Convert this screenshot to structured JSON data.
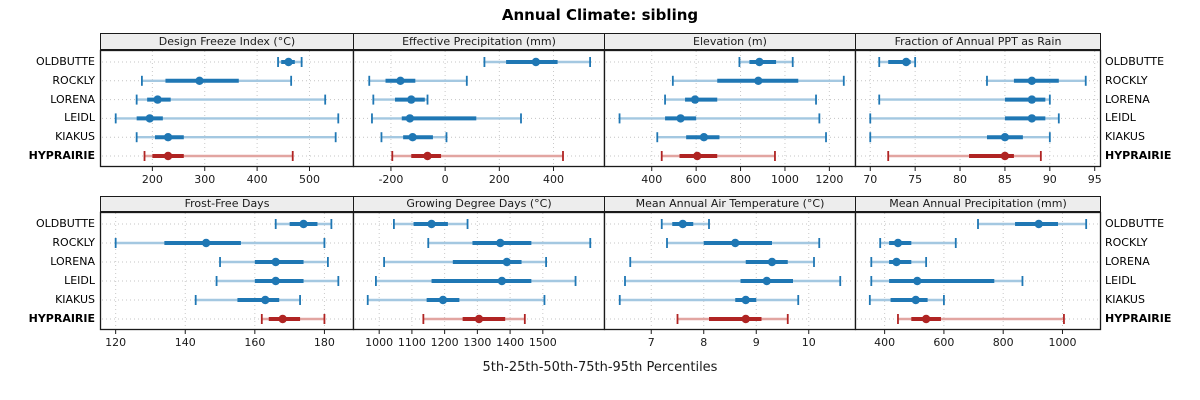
{
  "title": "Annual Climate: sibling",
  "caption": "5th-25th-50th-75th-95th Percentiles",
  "stations": [
    "OLDBUTTE",
    "ROCKLY",
    "LORENA",
    "LEIDL",
    "KIAKUS",
    "HYPRAIRIE"
  ],
  "highlight_station": "HYPRAIRIE",
  "colors": {
    "blue_main": "#1f77b4",
    "blue_light": "#a4c8e1",
    "red_main": "#b02423",
    "red_light": "#e2a5a1",
    "grid": "#c9c9c9",
    "row_guide": "#c4c4c4",
    "panel_border": "#1a1a1a",
    "strip_bg": "#ededed"
  },
  "chart_data": {
    "type": "scatter",
    "subtype": "percentile-dotplot",
    "title": "Annual Climate: sibling",
    "xlabel": "5th-25th-50th-75th-95th Percentiles",
    "percentiles": [
      5,
      25,
      50,
      75,
      95
    ],
    "categories": [
      "OLDBUTTE",
      "ROCKLY",
      "LORENA",
      "LEIDL",
      "KIAKUS",
      "HYPRAIRIE"
    ],
    "legend_position": "none",
    "grid": "dotted",
    "panels": [
      {
        "title": "Design Freeze Index (°C)",
        "row": 0,
        "col": 0,
        "ticks": [
          200,
          300,
          400,
          500
        ],
        "xlim": [
          100,
          585
        ],
        "series": [
          {
            "station": "OLDBUTTE",
            "values": [
              440,
              446,
              460,
              472,
              485
            ]
          },
          {
            "station": "ROCKLY",
            "values": [
              180,
              225,
              290,
              365,
              465
            ]
          },
          {
            "station": "LORENA",
            "values": [
              170,
              190,
              210,
              235,
              530
            ]
          },
          {
            "station": "LEIDL",
            "values": [
              130,
              170,
              195,
              220,
              555
            ]
          },
          {
            "station": "KIAKUS",
            "values": [
              170,
              205,
              230,
              260,
              550
            ]
          },
          {
            "station": "HYPRAIRIE",
            "values": [
              185,
              200,
              230,
              260,
              468
            ]
          }
        ]
      },
      {
        "title": "Effective Precipitation (mm)",
        "row": 0,
        "col": 1,
        "ticks": [
          -200,
          0,
          200,
          400
        ],
        "xlim": [
          -340,
          590
        ],
        "series": [
          {
            "station": "OLDBUTTE",
            "values": [
              145,
              225,
              335,
              415,
              535
            ]
          },
          {
            "station": "ROCKLY",
            "values": [
              -280,
              -220,
              -165,
              -110,
              80
            ]
          },
          {
            "station": "LORENA",
            "values": [
              -265,
              -185,
              -125,
              -75,
              -65
            ]
          },
          {
            "station": "LEIDL",
            "values": [
              -270,
              -160,
              -130,
              115,
              280
            ]
          },
          {
            "station": "KIAKUS",
            "values": [
              -235,
              -155,
              -120,
              -45,
              5
            ]
          },
          {
            "station": "HYPRAIRIE",
            "values": [
              -195,
              -125,
              -65,
              -15,
              435
            ]
          }
        ]
      },
      {
        "title": "Elevation (m)",
        "row": 0,
        "col": 2,
        "ticks": [
          400,
          600,
          800,
          1000,
          1200
        ],
        "xlim": [
          185,
          1320
        ],
        "series": [
          {
            "station": "OLDBUTTE",
            "values": [
              795,
              840,
              885,
              960,
              1035
            ]
          },
          {
            "station": "ROCKLY",
            "values": [
              495,
              695,
              880,
              1060,
              1265
            ]
          },
          {
            "station": "LORENA",
            "values": [
              460,
              550,
              595,
              695,
              1140
            ]
          },
          {
            "station": "LEIDL",
            "values": [
              255,
              460,
              530,
              600,
              1155
            ]
          },
          {
            "station": "KIAKUS",
            "values": [
              425,
              555,
              635,
              705,
              1185
            ]
          },
          {
            "station": "HYPRAIRIE",
            "values": [
              445,
              525,
              605,
              695,
              955
            ]
          }
        ]
      },
      {
        "title": "Fraction of Annual PPT as Rain",
        "row": 0,
        "col": 3,
        "ticks": [
          70,
          75,
          80,
          85,
          90,
          95
        ],
        "xlim": [
          68.3,
          95.7
        ],
        "series": [
          {
            "station": "OLDBUTTE",
            "values": [
              71,
              72,
              74,
              74.5,
              75
            ]
          },
          {
            "station": "ROCKLY",
            "values": [
              83,
              86,
              88,
              91,
              94
            ]
          },
          {
            "station": "LORENA",
            "values": [
              71,
              85,
              88,
              89.5,
              90
            ]
          },
          {
            "station": "LEIDL",
            "values": [
              70,
              85,
              88,
              89.5,
              91
            ]
          },
          {
            "station": "KIAKUS",
            "values": [
              70,
              83,
              85,
              87,
              90
            ]
          },
          {
            "station": "HYPRAIRIE",
            "values": [
              72,
              81,
              85,
              86,
              89
            ]
          }
        ]
      },
      {
        "title": "Frost-Free Days",
        "row": 1,
        "col": 0,
        "ticks": [
          120,
          140,
          160,
          180
        ],
        "xlim": [
          115.5,
          188.5
        ],
        "series": [
          {
            "station": "OLDBUTTE",
            "values": [
              166,
              170,
              174,
              178,
              182
            ]
          },
          {
            "station": "ROCKLY",
            "values": [
              120,
              134,
              146,
              156,
              180
            ]
          },
          {
            "station": "LORENA",
            "values": [
              150,
              160,
              166,
              174,
              181
            ]
          },
          {
            "station": "LEIDL",
            "values": [
              149,
              160,
              166,
              174,
              184
            ]
          },
          {
            "station": "KIAKUS",
            "values": [
              143,
              155,
              163,
              167,
              173
            ]
          },
          {
            "station": "HYPRAIRIE",
            "values": [
              162,
              164,
              168,
              173,
              180
            ]
          }
        ]
      },
      {
        "title": "Growing Degree Days (°C)",
        "row": 1,
        "col": 1,
        "ticks": [
          1000,
          1100,
          1200,
          1300,
          1400,
          1500
        ],
        "xlim": [
          920,
          1690
        ],
        "series": [
          {
            "station": "OLDBUTTE",
            "values": [
              1045,
              1105,
              1160,
              1210,
              1270
            ]
          },
          {
            "station": "ROCKLY",
            "values": [
              1150,
              1285,
              1370,
              1465,
              1645
            ]
          },
          {
            "station": "LORENA",
            "values": [
              1015,
              1225,
              1390,
              1435,
              1510
            ]
          },
          {
            "station": "LEIDL",
            "values": [
              990,
              1160,
              1375,
              1465,
              1600
            ]
          },
          {
            "station": "KIAKUS",
            "values": [
              965,
              1145,
              1195,
              1245,
              1505
            ]
          },
          {
            "station": "HYPRAIRIE",
            "values": [
              1135,
              1255,
              1305,
              1385,
              1445
            ]
          }
        ]
      },
      {
        "title": "Mean Annual Air Temperature (°C)",
        "row": 1,
        "col": 2,
        "ticks": [
          7,
          8,
          9,
          10
        ],
        "xlim": [
          6.1,
          10.9
        ],
        "series": [
          {
            "station": "OLDBUTTE",
            "values": [
              7.2,
              7.4,
              7.6,
              7.8,
              8.1
            ]
          },
          {
            "station": "ROCKLY",
            "values": [
              7.3,
              8.0,
              8.6,
              9.3,
              10.2
            ]
          },
          {
            "station": "LORENA",
            "values": [
              6.6,
              8.8,
              9.3,
              9.6,
              10.1
            ]
          },
          {
            "station": "LEIDL",
            "values": [
              6.5,
              8.7,
              9.2,
              9.7,
              10.6
            ]
          },
          {
            "station": "KIAKUS",
            "values": [
              6.4,
              8.6,
              8.8,
              9.0,
              9.8
            ]
          },
          {
            "station": "HYPRAIRIE",
            "values": [
              7.5,
              8.1,
              8.8,
              9.1,
              9.6
            ]
          }
        ]
      },
      {
        "title": "Mean Annual Precipitation (mm)",
        "row": 1,
        "col": 3,
        "ticks": [
          400,
          600,
          800,
          1000
        ],
        "xlim": [
          300,
          1130
        ],
        "series": [
          {
            "station": "OLDBUTTE",
            "values": [
              715,
              840,
              920,
              985,
              1080
            ]
          },
          {
            "station": "ROCKLY",
            "values": [
              385,
              415,
              445,
              490,
              640
            ]
          },
          {
            "station": "LORENA",
            "values": [
              355,
              415,
              440,
              490,
              540
            ]
          },
          {
            "station": "LEIDL",
            "values": [
              355,
              415,
              510,
              770,
              865
            ]
          },
          {
            "station": "KIAKUS",
            "values": [
              350,
              420,
              505,
              545,
              600
            ]
          },
          {
            "station": "HYPRAIRIE",
            "values": [
              445,
              490,
              540,
              590,
              1005
            ]
          }
        ]
      }
    ]
  }
}
